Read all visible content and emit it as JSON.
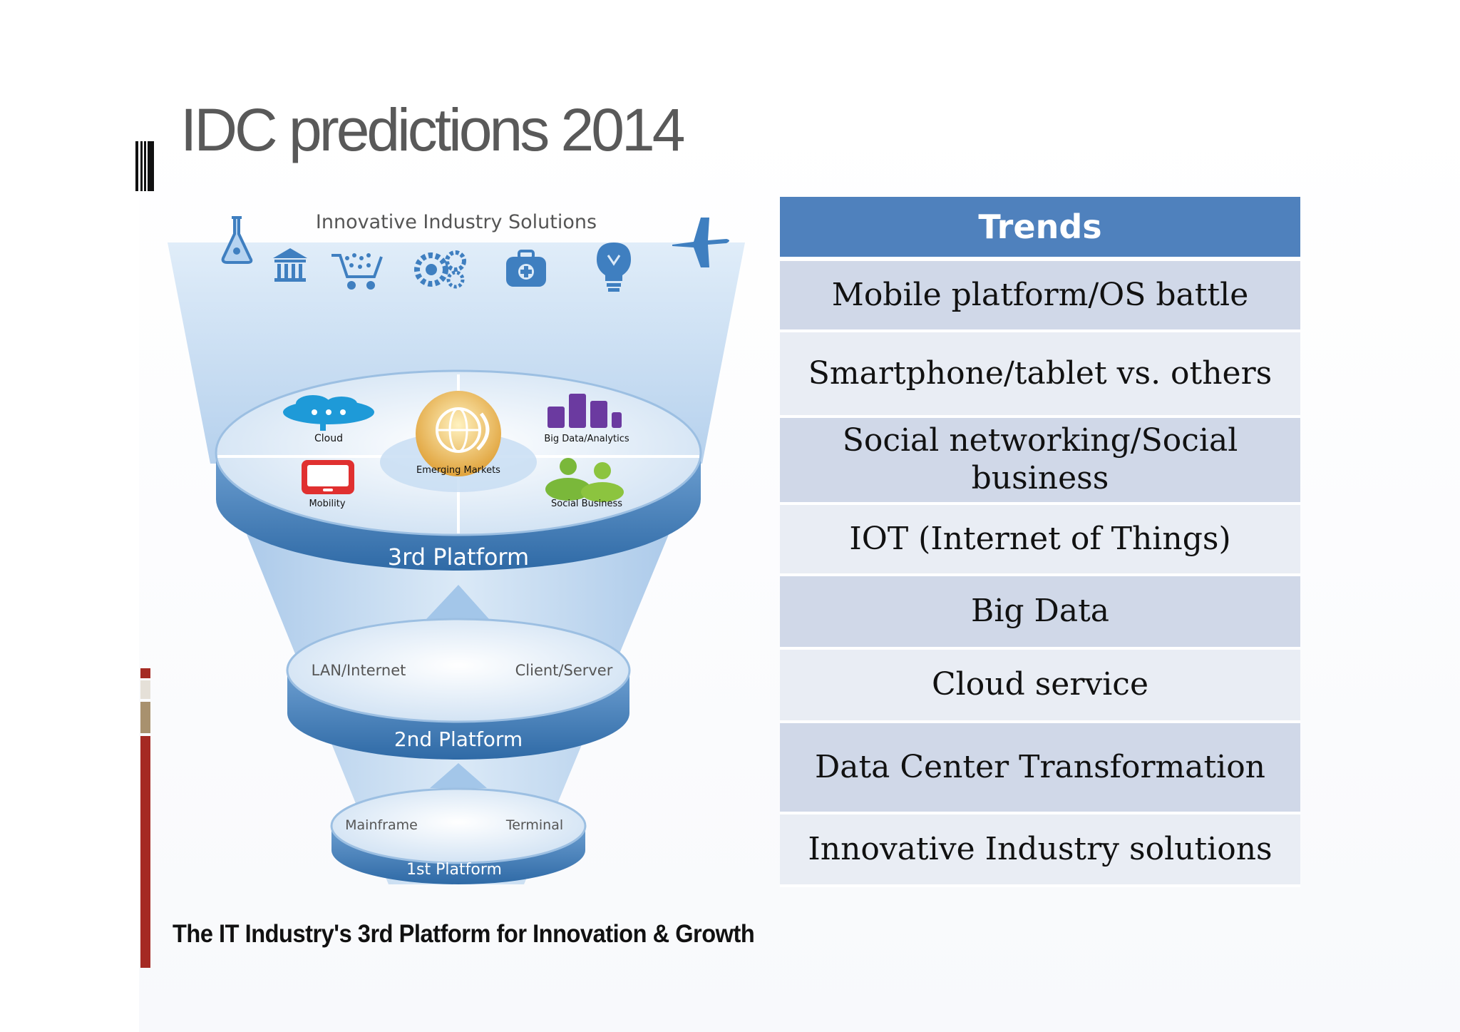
{
  "slide": {
    "title": "IDC predictions 2014",
    "caption": "The IT Industry's 3rd Platform for Innovation & Growth"
  },
  "diagram": {
    "top_label": "Innovative Industry Solutions",
    "industry_icons": [
      "flask-icon",
      "bank-icon",
      "shopping-cart-icon",
      "gears-icon",
      "medical-kit-icon",
      "lightbulb-icon",
      "airplane-icon"
    ],
    "platform3": {
      "label": "3rd Platform",
      "items": [
        "Cloud",
        "Emerging Markets",
        "Big Data/Analytics",
        "Mobility",
        "Social Business"
      ]
    },
    "platform2": {
      "label": "2nd Platform",
      "items": [
        "LAN/Internet",
        "Client/Server"
      ]
    },
    "platform1": {
      "label": "1st Platform",
      "items": [
        "Mainframe",
        "Terminal"
      ]
    }
  },
  "trends": {
    "header": "Trends",
    "items": [
      "Mobile platform/OS battle",
      "Smartphone/tablet vs. others",
      "Social networking/Social business",
      "IOT (Internet of Things)",
      "Big Data",
      "Cloud service",
      "Data Center Transformation",
      "Innovative Industry solutions"
    ]
  },
  "colors": {
    "header_blue": "#4f81bd",
    "row_dark": "#d0d8e8",
    "row_light": "#e9edf4",
    "accent_red": "#a52a23",
    "accent_tan": "#a8916e"
  }
}
